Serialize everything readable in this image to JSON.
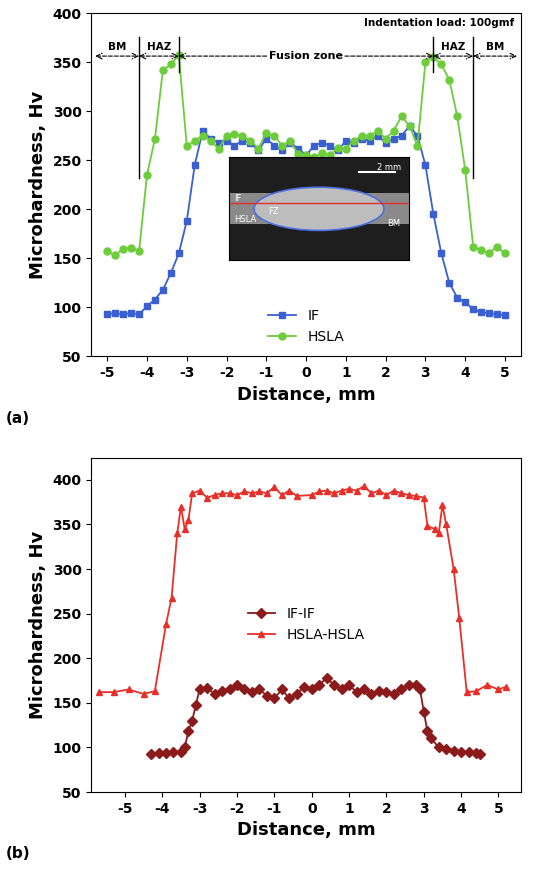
{
  "chart_data": [
    {
      "type": "line",
      "panel": "(a)",
      "x_label": "Distance, mm",
      "y_label": "Microhardness, Hv",
      "note": "Indentation load: 100gmf",
      "xlim": [
        -5.4,
        5.4
      ],
      "ylim": [
        50,
        400
      ],
      "xticks": [
        -5,
        -4,
        -3,
        -2,
        -1,
        0,
        1,
        2,
        3,
        4,
        5
      ],
      "yticks": [
        50,
        100,
        150,
        200,
        250,
        300,
        350,
        400
      ],
      "legend": "lower center",
      "zones": [
        {
          "label": "BM",
          "from": -5.3,
          "to": -4.2
        },
        {
          "label": "HAZ",
          "from": -4.2,
          "to": -3.2
        },
        {
          "label": "Fusion zone",
          "from": -3.2,
          "to": 3.2
        },
        {
          "label": "HAZ",
          "from": 3.2,
          "to": 4.2
        },
        {
          "label": "BM",
          "from": 4.2,
          "to": 5.3
        }
      ],
      "inset_texts": [
        "IF",
        "HSLA",
        "FZ",
        "BM",
        "2 mm"
      ],
      "series": [
        {
          "name": "IF",
          "color": "#3a5fd0",
          "marker": "square",
          "line_style": "solid",
          "x": [
            -5.0,
            -4.8,
            -4.6,
            -4.4,
            -4.2,
            -4.0,
            -3.8,
            -3.6,
            -3.4,
            -3.2,
            -3.0,
            -2.8,
            -2.6,
            -2.4,
            -2.2,
            -2.0,
            -1.8,
            -1.6,
            -1.4,
            -1.2,
            -1.0,
            -0.8,
            -0.6,
            -0.4,
            -0.2,
            0.0,
            0.2,
            0.4,
            0.6,
            0.8,
            1.0,
            1.2,
            1.4,
            1.6,
            1.8,
            2.0,
            2.2,
            2.4,
            2.6,
            2.8,
            3.0,
            3.2,
            3.4,
            3.6,
            3.8,
            4.0,
            4.2,
            4.4,
            4.6,
            4.8,
            5.0
          ],
          "values": [
            93,
            94,
            93,
            94,
            93,
            101,
            108,
            118,
            135,
            155,
            188,
            245,
            280,
            272,
            268,
            270,
            265,
            270,
            268,
            260,
            272,
            265,
            260,
            268,
            262,
            255,
            265,
            268,
            265,
            260,
            270,
            268,
            272,
            270,
            275,
            268,
            272,
            275,
            285,
            275,
            245,
            195,
            155,
            125,
            110,
            105,
            98,
            95,
            94,
            93,
            92
          ]
        },
        {
          "name": "HSLA",
          "color": "#6ccc3a",
          "marker": "circle",
          "line_style": "solid",
          "x": [
            -5.0,
            -4.8,
            -4.6,
            -4.4,
            -4.2,
            -4.0,
            -3.8,
            -3.6,
            -3.4,
            -3.2,
            -3.0,
            -2.8,
            -2.6,
            -2.4,
            -2.2,
            -2.0,
            -1.8,
            -1.6,
            -1.4,
            -1.2,
            -1.0,
            -0.8,
            -0.6,
            -0.4,
            -0.2,
            0.0,
            0.2,
            0.4,
            0.6,
            0.8,
            1.0,
            1.2,
            1.4,
            1.6,
            1.8,
            2.0,
            2.2,
            2.4,
            2.6,
            2.8,
            3.0,
            3.2,
            3.4,
            3.6,
            3.8,
            4.0,
            4.2,
            4.4,
            4.6,
            4.8,
            5.0
          ],
          "values": [
            157,
            153,
            160,
            161,
            157,
            235,
            272,
            342,
            348,
            357,
            265,
            270,
            275,
            270,
            262,
            275,
            277,
            275,
            270,
            262,
            278,
            275,
            265,
            270,
            256,
            255,
            253,
            257,
            255,
            263,
            262,
            270,
            275,
            275,
            280,
            272,
            280,
            295,
            285,
            265,
            350,
            355,
            348,
            332,
            295,
            240,
            162,
            158,
            155,
            162,
            155
          ]
        }
      ]
    },
    {
      "type": "line",
      "panel": "(b)",
      "x_label": "Distance, mm",
      "y_label": "Microhardness, Hv",
      "xlim": [
        -5.9,
        5.6
      ],
      "ylim": [
        50,
        425
      ],
      "xticks": [
        -5,
        -4,
        -3,
        -2,
        -1,
        0,
        1,
        2,
        3,
        4,
        5
      ],
      "yticks": [
        50,
        100,
        150,
        200,
        250,
        300,
        350,
        400
      ],
      "legend": "center",
      "series": [
        {
          "name": "IF-IF",
          "color": "#8b1a1a",
          "marker": "diamond",
          "line_style": "solid",
          "x": [
            -4.3,
            -4.1,
            -3.9,
            -3.7,
            -3.5,
            -3.4,
            -3.3,
            -3.2,
            -3.1,
            -3.0,
            -2.8,
            -2.6,
            -2.4,
            -2.2,
            -2.0,
            -1.8,
            -1.6,
            -1.4,
            -1.2,
            -1.0,
            -0.8,
            -0.6,
            -0.4,
            -0.2,
            0.0,
            0.2,
            0.4,
            0.6,
            0.8,
            1.0,
            1.2,
            1.4,
            1.6,
            1.8,
            2.0,
            2.2,
            2.4,
            2.6,
            2.8,
            2.9,
            3.0,
            3.1,
            3.2,
            3.4,
            3.6,
            3.8,
            4.0,
            4.2,
            4.4,
            4.5
          ],
          "values": [
            93,
            94,
            94,
            95,
            95,
            100,
            118,
            130,
            148,
            165,
            167,
            160,
            163,
            165,
            170,
            165,
            162,
            165,
            158,
            155,
            165,
            155,
            160,
            168,
            165,
            170,
            178,
            170,
            165,
            170,
            162,
            165,
            160,
            163,
            162,
            160,
            165,
            170,
            170,
            165,
            140,
            118,
            110,
            100,
            98,
            96,
            95,
            95,
            94,
            93
          ]
        },
        {
          "name": "HSLA-HSLA",
          "color": "#e8302a",
          "marker": "triangle",
          "line_style": "solid",
          "x": [
            -5.7,
            -5.3,
            -4.9,
            -4.5,
            -4.2,
            -3.9,
            -3.75,
            -3.6,
            -3.5,
            -3.4,
            -3.3,
            -3.2,
            -3.0,
            -2.8,
            -2.6,
            -2.4,
            -2.2,
            -2.0,
            -1.8,
            -1.6,
            -1.4,
            -1.2,
            -1.0,
            -0.8,
            -0.6,
            -0.4,
            0.0,
            0.2,
            0.4,
            0.6,
            0.8,
            1.0,
            1.2,
            1.4,
            1.6,
            1.8,
            2.0,
            2.2,
            2.4,
            2.6,
            2.8,
            3.0,
            3.1,
            3.3,
            3.4,
            3.5,
            3.6,
            3.8,
            3.95,
            4.15,
            4.4,
            4.7,
            5.0,
            5.2
          ],
          "values": [
            162,
            162,
            165,
            160,
            163,
            238,
            268,
            340,
            370,
            345,
            355,
            385,
            388,
            380,
            383,
            385,
            385,
            383,
            387,
            385,
            387,
            385,
            392,
            383,
            388,
            382,
            383,
            387,
            388,
            385,
            388,
            390,
            388,
            393,
            385,
            388,
            383,
            388,
            385,
            383,
            382,
            380,
            348,
            345,
            340,
            372,
            350,
            300,
            245,
            162,
            163,
            170,
            165,
            168
          ]
        }
      ]
    }
  ]
}
